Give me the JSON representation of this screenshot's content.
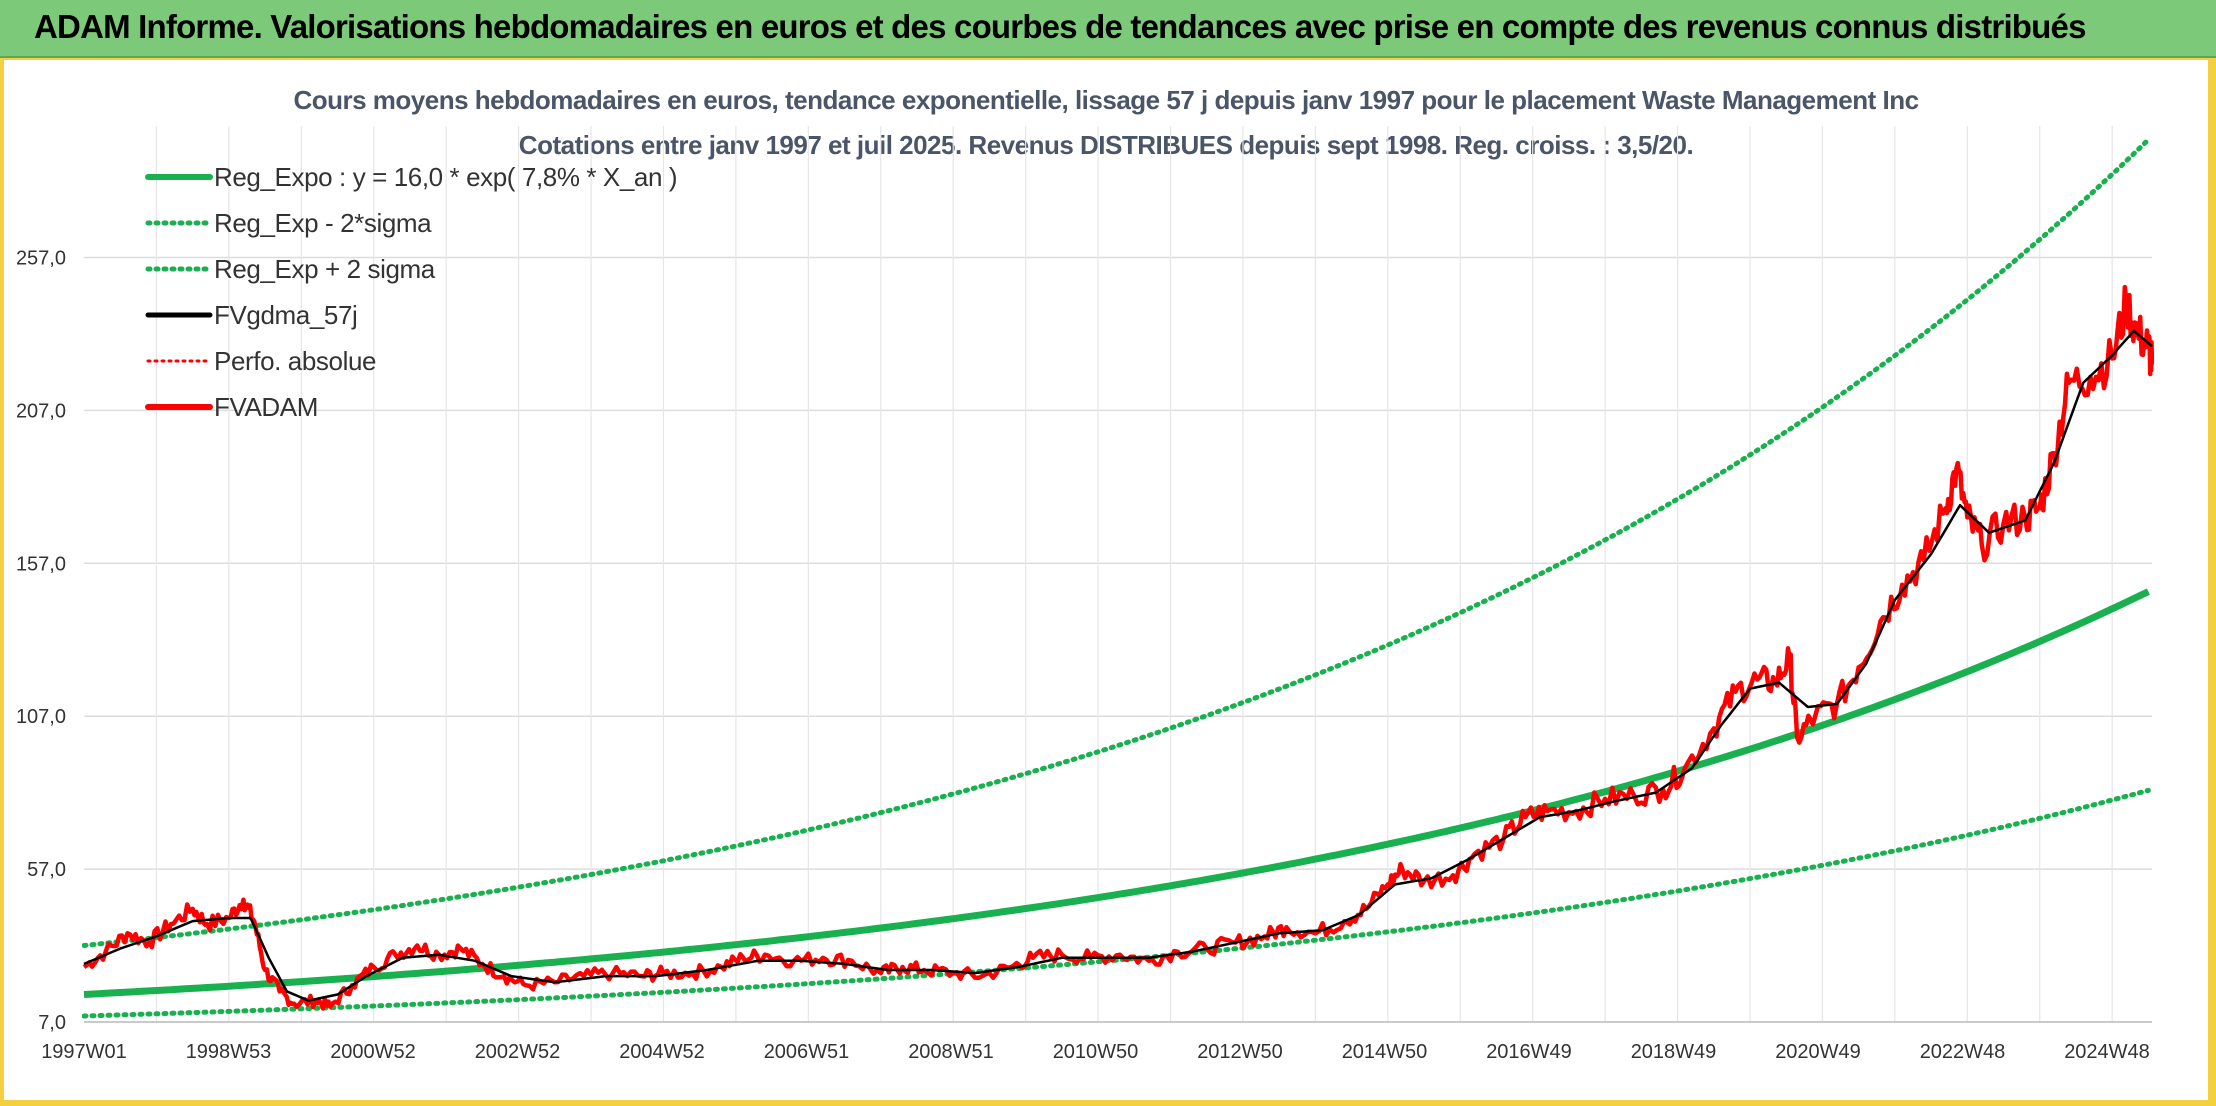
{
  "header": {
    "title": "ADAM Informe. Valorisations hebdomadaires en euros et des courbes de tendances avec prise en compte des revenus connus distribués"
  },
  "colors": {
    "header_bg": "#7dc97a",
    "reg_green": "#19b04f",
    "dotted_green": "#19b04f",
    "black": "#000000",
    "red": "#ff0000",
    "grid": "#dcdcdc"
  },
  "chart_data": {
    "type": "line",
    "title_line1": "Cours moyens hebdomadaires en euros, tendance exponentielle, lissage 57 j depuis janv 1997 pour le placement Waste Management Inc",
    "title_line2": "Cotations entre janv 1997 et juil 2025. Revenus DISTRIBUES depuis sept 1998. Reg. croiss. : 3,5/20.",
    "x_ticks": [
      "1997W01",
      "1998W53",
      "2000W52",
      "2002W52",
      "2004W52",
      "2006W51",
      "2008W51",
      "2010W50",
      "2012W50",
      "2014W50",
      "2016W49",
      "2018W49",
      "2020W49",
      "2022W48",
      "2024W48"
    ],
    "y_ticks": [
      "7,0",
      "57,0",
      "107,0",
      "157,0",
      "207,0",
      "257,0"
    ],
    "ylim": [
      7,
      300
    ],
    "xlim": [
      1997.0,
      2025.55
    ],
    "legend": [
      {
        "label": "Reg_Expo : y = 16,0 * exp( 7,8% *  X_an )",
        "style": "solid-green"
      },
      {
        "label": "Reg_Exp - 2*sigma",
        "style": "dotted-green"
      },
      {
        "label": "Reg_Exp + 2 sigma",
        "style": "dotted-green"
      },
      {
        "label": "FVgdma_57j",
        "style": "solid-black"
      },
      {
        "label": "Perfo. absolue",
        "style": "dotted-red"
      },
      {
        "label": "FVADAM",
        "style": "solid-red"
      }
    ],
    "regression": {
      "a": 16.0,
      "rate": 0.078,
      "lower_factor": 0.56,
      "upper_factor": 2.0
    },
    "fvadam": [
      [
        1997.0,
        25
      ],
      [
        1997.3,
        30
      ],
      [
        1997.6,
        36
      ],
      [
        1997.9,
        33
      ],
      [
        1998.2,
        39
      ],
      [
        1998.5,
        44
      ],
      [
        1998.7,
        39
      ],
      [
        1999.0,
        41
      ],
      [
        1999.2,
        47
      ],
      [
        1999.35,
        40
      ],
      [
        1999.5,
        24
      ],
      [
        1999.7,
        17
      ],
      [
        1999.9,
        13
      ],
      [
        2000.2,
        14
      ],
      [
        2000.4,
        12
      ],
      [
        2000.7,
        19
      ],
      [
        2001.0,
        25
      ],
      [
        2001.3,
        29
      ],
      [
        2001.6,
        32
      ],
      [
        2001.9,
        29
      ],
      [
        2002.2,
        31
      ],
      [
        2002.5,
        26
      ],
      [
        2002.8,
        22
      ],
      [
        2003.1,
        19
      ],
      [
        2003.5,
        20
      ],
      [
        2003.9,
        22
      ],
      [
        2004.3,
        23
      ],
      [
        2004.7,
        22
      ],
      [
        2005.0,
        23
      ],
      [
        2005.4,
        23
      ],
      [
        2005.8,
        25
      ],
      [
        2006.1,
        28
      ],
      [
        2006.4,
        29
      ],
      [
        2006.8,
        27
      ],
      [
        2007.2,
        28
      ],
      [
        2007.6,
        27
      ],
      [
        2008.0,
        23
      ],
      [
        2008.3,
        25
      ],
      [
        2008.6,
        24
      ],
      [
        2009.0,
        23
      ],
      [
        2009.4,
        22
      ],
      [
        2009.8,
        25
      ],
      [
        2010.1,
        28
      ],
      [
        2010.5,
        29
      ],
      [
        2010.9,
        28
      ],
      [
        2011.3,
        29
      ],
      [
        2011.7,
        27
      ],
      [
        2012.1,
        30
      ],
      [
        2012.5,
        31
      ],
      [
        2012.9,
        33
      ],
      [
        2013.3,
        35
      ],
      [
        2013.6,
        38
      ],
      [
        2014.0,
        36
      ],
      [
        2014.4,
        40
      ],
      [
        2014.7,
        44
      ],
      [
        2015.0,
        52
      ],
      [
        2015.2,
        57
      ],
      [
        2015.5,
        53
      ],
      [
        2015.9,
        55
      ],
      [
        2016.2,
        62
      ],
      [
        2016.6,
        67
      ],
      [
        2016.9,
        74
      ],
      [
        2017.2,
        76
      ],
      [
        2017.6,
        76
      ],
      [
        2018.0,
        80
      ],
      [
        2018.4,
        81
      ],
      [
        2018.8,
        83
      ],
      [
        2019.1,
        90
      ],
      [
        2019.5,
        103
      ],
      [
        2019.8,
        115
      ],
      [
        2020.1,
        119
      ],
      [
        2020.35,
        118
      ],
      [
        2020.55,
        126
      ],
      [
        2020.65,
        100
      ],
      [
        2020.9,
        107
      ],
      [
        2021.2,
        111
      ],
      [
        2021.5,
        123
      ],
      [
        2021.8,
        138
      ],
      [
        2022.1,
        150
      ],
      [
        2022.4,
        158
      ],
      [
        2022.7,
        175
      ],
      [
        2022.85,
        188
      ],
      [
        2023.0,
        172
      ],
      [
        2023.2,
        163
      ],
      [
        2023.5,
        170
      ],
      [
        2023.8,
        172
      ],
      [
        2024.0,
        175
      ],
      [
        2024.2,
        193
      ],
      [
        2024.4,
        216
      ],
      [
        2024.7,
        218
      ],
      [
        2025.0,
        224
      ],
      [
        2025.2,
        242
      ],
      [
        2025.35,
        232
      ],
      [
        2025.5,
        228
      ],
      [
        2025.55,
        222
      ]
    ],
    "smooth": [
      [
        1997.0,
        26
      ],
      [
        1997.5,
        31
      ],
      [
        1998.0,
        35
      ],
      [
        1998.5,
        40
      ],
      [
        1999.0,
        41
      ],
      [
        1999.3,
        41
      ],
      [
        1999.55,
        28
      ],
      [
        1999.8,
        17
      ],
      [
        2000.1,
        14
      ],
      [
        2000.5,
        16
      ],
      [
        2000.9,
        22
      ],
      [
        2001.4,
        28
      ],
      [
        2001.9,
        29
      ],
      [
        2002.4,
        27
      ],
      [
        2002.9,
        22
      ],
      [
        2003.5,
        20
      ],
      [
        2004.2,
        22
      ],
      [
        2004.9,
        22
      ],
      [
        2005.6,
        24
      ],
      [
        2006.3,
        27
      ],
      [
        2006.9,
        27
      ],
      [
        2007.5,
        26
      ],
      [
        2008.1,
        24
      ],
      [
        2008.7,
        24
      ],
      [
        2009.3,
        23
      ],
      [
        2009.9,
        25
      ],
      [
        2010.5,
        28
      ],
      [
        2011.1,
        28
      ],
      [
        2011.7,
        28
      ],
      [
        2012.3,
        30
      ],
      [
        2012.9,
        33
      ],
      [
        2013.5,
        36
      ],
      [
        2014.1,
        37
      ],
      [
        2014.6,
        42
      ],
      [
        2015.1,
        52
      ],
      [
        2015.6,
        54
      ],
      [
        2016.1,
        60
      ],
      [
        2016.6,
        67
      ],
      [
        2017.1,
        74
      ],
      [
        2017.6,
        76
      ],
      [
        2018.1,
        79
      ],
      [
        2018.7,
        82
      ],
      [
        2019.2,
        90
      ],
      [
        2019.6,
        104
      ],
      [
        2020.0,
        116
      ],
      [
        2020.4,
        118
      ],
      [
        2020.8,
        110
      ],
      [
        2021.2,
        111
      ],
      [
        2021.6,
        124
      ],
      [
        2022.0,
        145
      ],
      [
        2022.5,
        160
      ],
      [
        2022.9,
        176
      ],
      [
        2023.3,
        167
      ],
      [
        2023.8,
        171
      ],
      [
        2024.2,
        190
      ],
      [
        2024.6,
        216
      ],
      [
        2025.0,
        225
      ],
      [
        2025.3,
        233
      ],
      [
        2025.55,
        228
      ]
    ]
  }
}
